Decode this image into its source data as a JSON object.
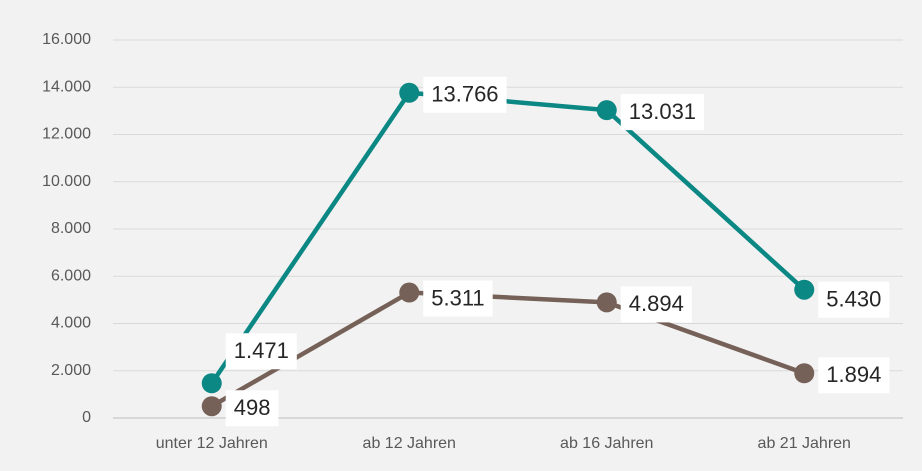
{
  "chart_data": {
    "type": "line",
    "categories": [
      "unter 12 Jahren",
      "ab 12 Jahren",
      "ab 16 Jahren",
      "ab 21 Jahren"
    ],
    "series": [
      {
        "color": "#0b8784",
        "values": [
          1471,
          13766,
          13031,
          5430
        ],
        "value_labels": [
          "1.471",
          "13.766",
          "13.031",
          "5.430"
        ]
      },
      {
        "color": "#766158",
        "values": [
          498,
          5311,
          4894,
          1894
        ],
        "value_labels": [
          "498",
          "5.311",
          "4.894",
          "1.894"
        ]
      }
    ],
    "ylim": [
      0,
      16000
    ],
    "yticks": [
      {
        "value": 0,
        "label": "0"
      },
      {
        "value": 2000,
        "label": "2.000"
      },
      {
        "value": 4000,
        "label": "4.000"
      },
      {
        "value": 6000,
        "label": "6.000"
      },
      {
        "value": 8000,
        "label": "8.000"
      },
      {
        "value": 10000,
        "label": "10.000"
      },
      {
        "value": 12000,
        "label": "12.000"
      },
      {
        "value": 14000,
        "label": "14.000"
      },
      {
        "value": 16000,
        "label": "16.000"
      }
    ],
    "grid": true
  }
}
